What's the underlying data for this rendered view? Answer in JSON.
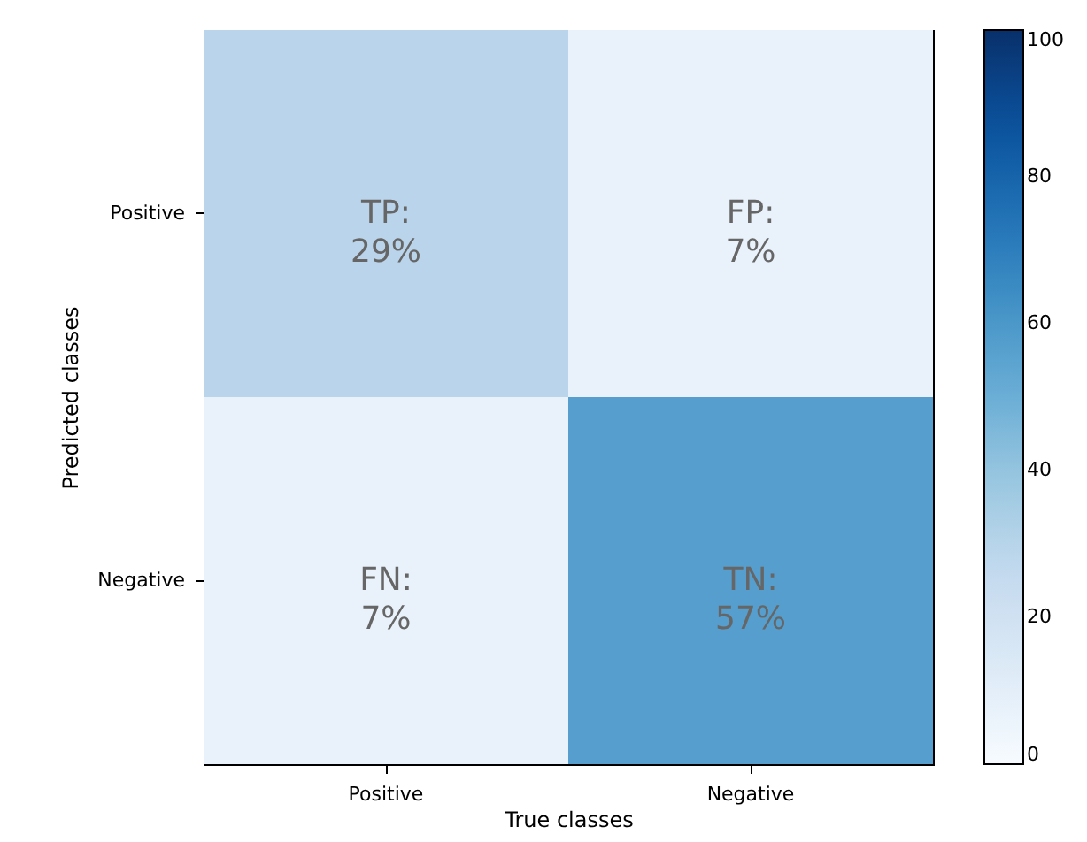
{
  "chart_data": {
    "type": "heatmap",
    "xlabel": "True classes",
    "ylabel": "Predicted classes",
    "categories": [
      "Positive",
      "Negative"
    ],
    "y_categories": [
      "Positive",
      "Negative"
    ],
    "cells": [
      [
        29,
        7
      ],
      [
        7,
        57
      ]
    ],
    "cell_labels": [
      [
        "TP:\n29%",
        "FP:\n7%"
      ],
      [
        "FN:\n7%",
        "TN:\n57%"
      ]
    ],
    "clim": [
      0,
      100
    ],
    "cticks": [
      0,
      20,
      40,
      60,
      80,
      100
    ]
  }
}
